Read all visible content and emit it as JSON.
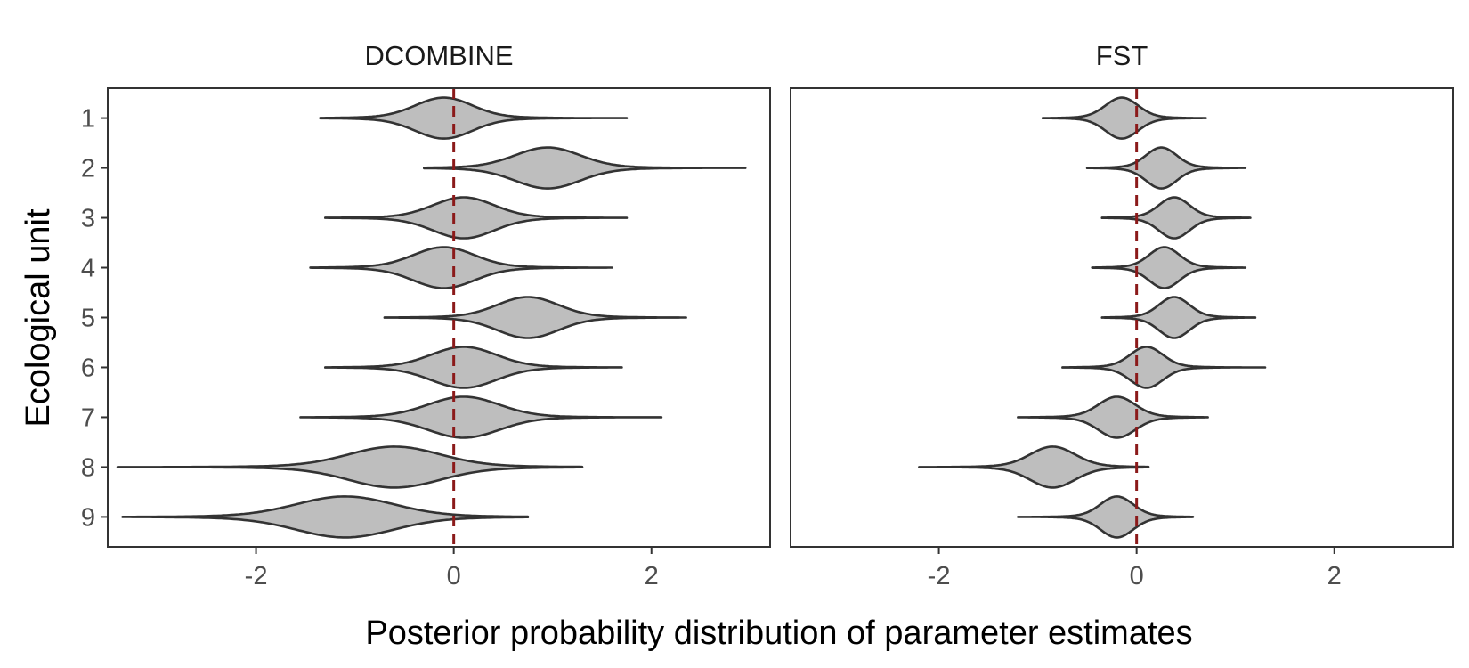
{
  "chart_data": {
    "type": "violin",
    "orientation": "horizontal",
    "xlabel": "Posterior probability distribution of parameter estimates",
    "ylabel": "Ecological unit",
    "xlim": [
      -3.5,
      3.2
    ],
    "x_ticks": [
      -2,
      0,
      2
    ],
    "y_categories": [
      "1",
      "2",
      "3",
      "4",
      "5",
      "6",
      "7",
      "8",
      "9"
    ],
    "reference_line": {
      "x": 0,
      "style": "dashed",
      "color": "#8b1a1a"
    },
    "fill_color": "#bebebe",
    "grid": false,
    "panels": [
      {
        "title": "DCOMBINE",
        "violins": [
          {
            "unit": "1",
            "min": -1.35,
            "max": 1.75,
            "center": -0.1,
            "spread": 0.28,
            "tail": 0.55
          },
          {
            "unit": "2",
            "min": -0.3,
            "max": 2.95,
            "center": 0.95,
            "spread": 0.32,
            "tail": 0.6
          },
          {
            "unit": "3",
            "min": -1.3,
            "max": 1.75,
            "center": 0.1,
            "spread": 0.3,
            "tail": 0.55
          },
          {
            "unit": "4",
            "min": -1.45,
            "max": 1.6,
            "center": -0.1,
            "spread": 0.3,
            "tail": 0.55
          },
          {
            "unit": "5",
            "min": -0.7,
            "max": 2.35,
            "center": 0.75,
            "spread": 0.3,
            "tail": 0.55
          },
          {
            "unit": "6",
            "min": -1.3,
            "max": 1.7,
            "center": 0.1,
            "spread": 0.32,
            "tail": 0.55
          },
          {
            "unit": "7",
            "min": -1.55,
            "max": 2.1,
            "center": 0.1,
            "spread": 0.35,
            "tail": 0.6
          },
          {
            "unit": "8",
            "min": -3.4,
            "max": 1.3,
            "center": -0.6,
            "spread": 0.45,
            "tail": 0.9
          },
          {
            "unit": "9",
            "min": -3.35,
            "max": 0.75,
            "center": -1.1,
            "spread": 0.48,
            "tail": 0.9
          }
        ]
      },
      {
        "title": "FST",
        "violins": [
          {
            "unit": "1",
            "min": -0.95,
            "max": 0.7,
            "center": -0.15,
            "spread": 0.16,
            "tail": 0.3
          },
          {
            "unit": "2",
            "min": -0.5,
            "max": 1.1,
            "center": 0.25,
            "spread": 0.15,
            "tail": 0.3
          },
          {
            "unit": "3",
            "min": -0.35,
            "max": 1.15,
            "center": 0.38,
            "spread": 0.15,
            "tail": 0.3
          },
          {
            "unit": "4",
            "min": -0.45,
            "max": 1.1,
            "center": 0.28,
            "spread": 0.15,
            "tail": 0.3
          },
          {
            "unit": "5",
            "min": -0.35,
            "max": 1.2,
            "center": 0.38,
            "spread": 0.15,
            "tail": 0.3
          },
          {
            "unit": "6",
            "min": -0.75,
            "max": 1.3,
            "center": 0.1,
            "spread": 0.16,
            "tail": 0.32
          },
          {
            "unit": "7",
            "min": -1.2,
            "max": 0.72,
            "center": -0.2,
            "spread": 0.18,
            "tail": 0.35
          },
          {
            "unit": "8",
            "min": -2.2,
            "max": 0.12,
            "center": -0.85,
            "spread": 0.22,
            "tail": 0.45
          },
          {
            "unit": "9",
            "min": -1.2,
            "max": 0.57,
            "center": -0.2,
            "spread": 0.16,
            "tail": 0.32
          }
        ]
      }
    ]
  }
}
